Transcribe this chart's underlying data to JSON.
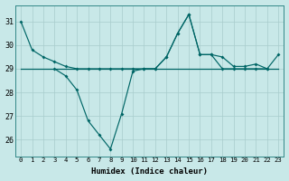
{
  "xlabel": "Humidex (Indice chaleur)",
  "bg_color": "#c8e8e8",
  "line_color": "#006666",
  "grid_color": "#a8cccc",
  "ylim": [
    25.3,
    31.7
  ],
  "yticks": [
    26,
    27,
    28,
    29,
    30,
    31
  ],
  "xticks": [
    0,
    1,
    2,
    3,
    4,
    5,
    6,
    7,
    8,
    9,
    10,
    11,
    12,
    13,
    14,
    15,
    16,
    17,
    18,
    19,
    20,
    21,
    22,
    23
  ],
  "line1": [
    31.0,
    29.8,
    29.5,
    29.3,
    29.1,
    29.0,
    29.0,
    29.0,
    29.0,
    29.0,
    29.0,
    29.0,
    29.0,
    29.5,
    30.5,
    31.3,
    29.6,
    29.6,
    29.5,
    29.1,
    29.1,
    29.2,
    29.0,
    29.6
  ],
  "line2": [
    null,
    null,
    null,
    29.0,
    28.7,
    28.1,
    26.8,
    26.2,
    25.6,
    27.1,
    28.9,
    29.0,
    29.0,
    29.5,
    30.5,
    31.3,
    29.6,
    29.6,
    29.0,
    29.0,
    29.0,
    29.0,
    29.0,
    null
  ],
  "line3": [
    29.0,
    29.0,
    29.0,
    29.0,
    29.0,
    29.0,
    29.0,
    29.0,
    29.0,
    29.0,
    29.0,
    29.0,
    29.0,
    29.0,
    29.0,
    29.0,
    29.0,
    29.0,
    29.0,
    29.0,
    29.0,
    29.0,
    29.0,
    29.0
  ]
}
